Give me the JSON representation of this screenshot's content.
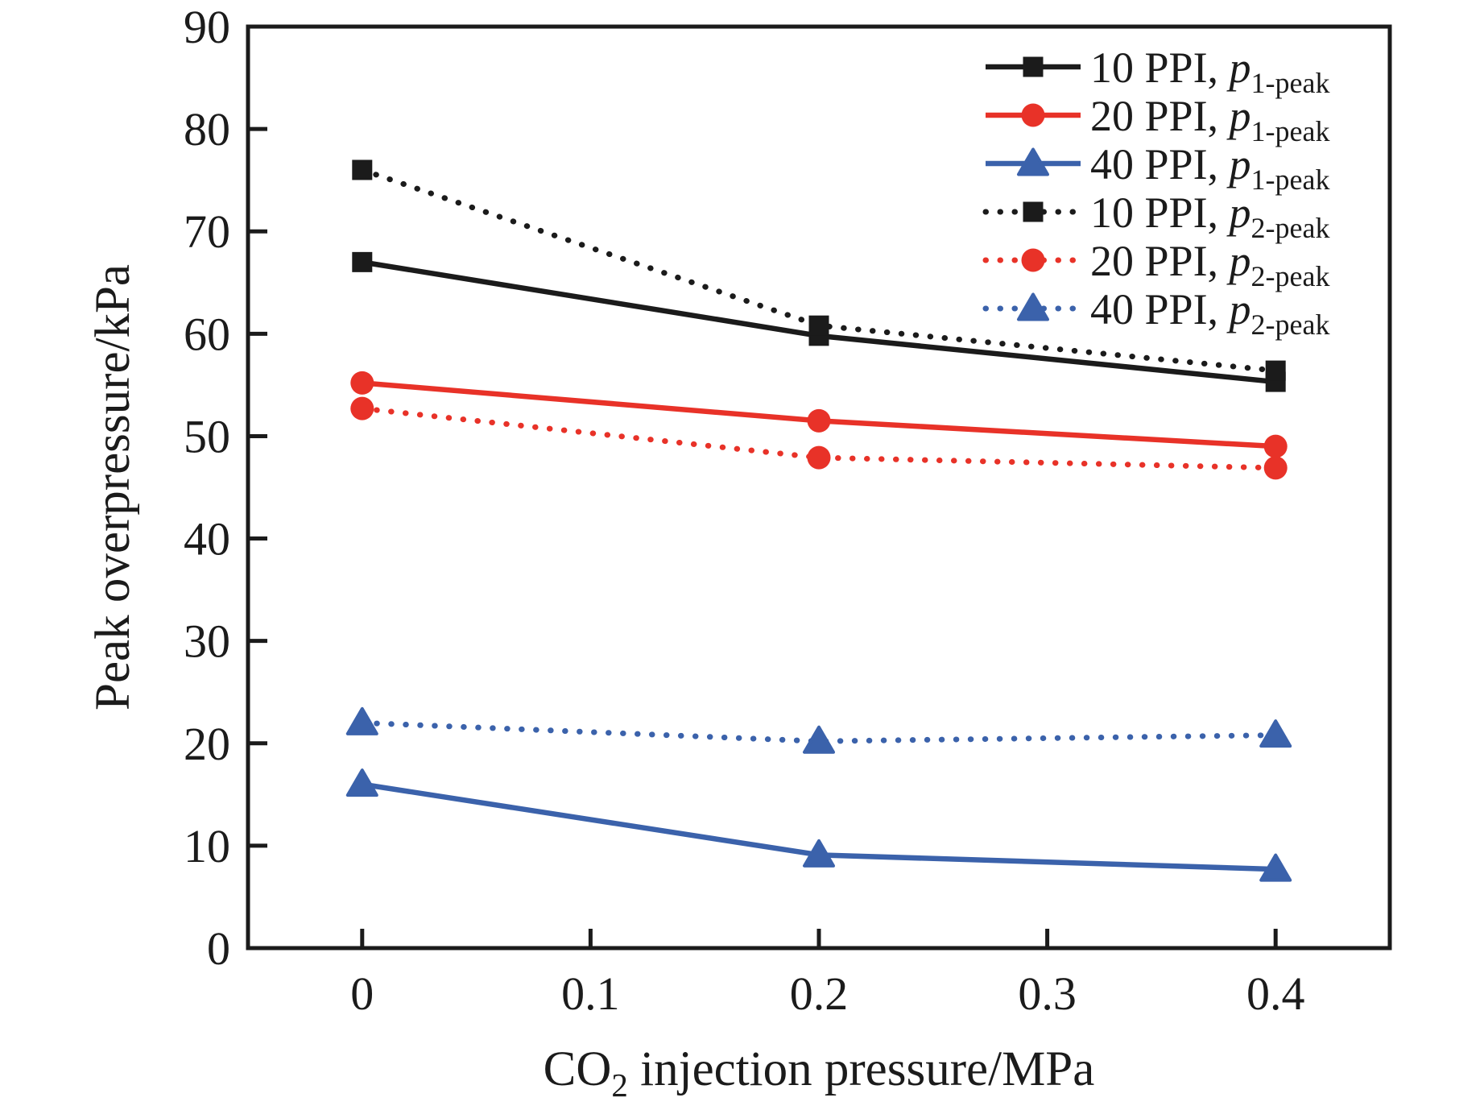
{
  "figure": {
    "background": "#ffffff",
    "axis_color": "#1b1b1b"
  },
  "chart_data": {
    "type": "line",
    "title": "",
    "xlabel": "CO2 injection pressure/MPa",
    "xlabel_parts": {
      "base": "CO",
      "sub": "2",
      "rest": " injection pressure/MPa"
    },
    "ylabel": "Peak overpressure/kPa",
    "xlim": [
      -0.05,
      0.45
    ],
    "ylim": [
      0,
      90
    ],
    "xticks": [
      "0",
      "0.1",
      "0.2",
      "0.3",
      "0.4"
    ],
    "xtick_values": [
      0,
      0.1,
      0.2,
      0.3,
      0.4
    ],
    "yticks": [
      "0",
      "10",
      "20",
      "30",
      "40",
      "50",
      "60",
      "70",
      "80",
      "90"
    ],
    "ytick_values": [
      0,
      10,
      20,
      30,
      40,
      50,
      60,
      70,
      80,
      90
    ],
    "grid": false,
    "legend_position": "top-right-inside",
    "x": [
      0,
      0.2,
      0.4
    ],
    "series": [
      {
        "name": "10 PPI, p1-peak",
        "legend_prefix": "10 PPI, ",
        "legend_var": "p",
        "legend_sub": "1-peak",
        "color": "#1b1b1b",
        "line_style": "solid",
        "marker": "square",
        "values": [
          67.0,
          59.8,
          55.3
        ]
      },
      {
        "name": "20 PPI, p1-peak",
        "legend_prefix": "20 PPI, ",
        "legend_var": "p",
        "legend_sub": "1-peak",
        "color": "#e83228",
        "line_style": "solid",
        "marker": "circle",
        "values": [
          55.2,
          51.5,
          49.0
        ]
      },
      {
        "name": "40 PPI, p1-peak",
        "legend_prefix": "40 PPI, ",
        "legend_var": "p",
        "legend_sub": "1-peak",
        "color": "#3b62ab",
        "line_style": "solid",
        "marker": "triangle",
        "values": [
          16.0,
          9.1,
          7.7
        ]
      },
      {
        "name": "10 PPI, p2-peak",
        "legend_prefix": "10 PPI, ",
        "legend_var": "p",
        "legend_sub": "2-peak",
        "color": "#1b1b1b",
        "line_style": "dotted",
        "marker": "square",
        "values": [
          76.0,
          60.8,
          56.4
        ]
      },
      {
        "name": "20 PPI, p2-peak",
        "legend_prefix": "20 PPI, ",
        "legend_var": "p",
        "legend_sub": "2-peak",
        "color": "#e83228",
        "line_style": "dotted",
        "marker": "circle",
        "values": [
          52.7,
          47.9,
          46.9
        ]
      },
      {
        "name": "40 PPI, p2-peak",
        "legend_prefix": "40 PPI, ",
        "legend_var": "p",
        "legend_sub": "2-peak",
        "color": "#3b62ab",
        "line_style": "dotted",
        "marker": "triangle",
        "values": [
          22.0,
          20.2,
          20.8
        ]
      }
    ]
  }
}
